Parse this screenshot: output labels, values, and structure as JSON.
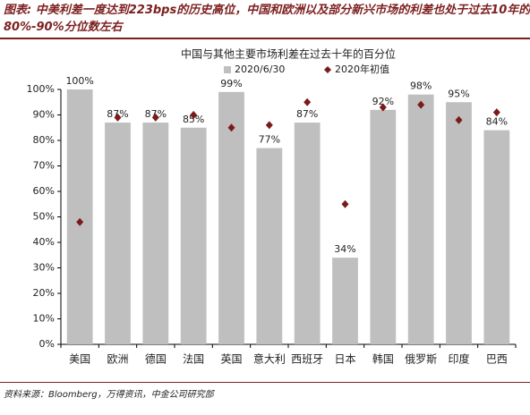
{
  "chart_data": {
    "type": "bar",
    "caption": "图表: 中美利差一度达到223bps的历史高位，中国和欧洲以及部分新兴市场的利差也处于过去10年的80%-90%分位数左右",
    "title": "中国与其他主要市场利差在过去十年的百分位",
    "source": "资料来源：Bloomberg，万得资讯，中金公司研究部",
    "categories": [
      "美国",
      "欧洲",
      "德国",
      "法国",
      "英国",
      "意大利",
      "西班牙",
      "日本",
      "韩国",
      "俄罗斯",
      "印度",
      "巴西"
    ],
    "series": [
      {
        "name": "2020/6/30",
        "color": "#bfbfbf",
        "marker": "bar",
        "values": [
          100,
          87,
          87,
          85,
          99,
          77,
          87,
          34,
          92,
          98,
          95,
          84
        ],
        "value_labels": [
          "100%",
          "87%",
          "87%",
          "85%",
          "99%",
          "77%",
          "87%",
          "34%",
          "92%",
          "98%",
          "95%",
          "84%"
        ]
      },
      {
        "name": "2020年初值",
        "color": "#7b1a1a",
        "marker": "diamond",
        "values": [
          48,
          89,
          89,
          90,
          85,
          86,
          95,
          55,
          93,
          94,
          88,
          91
        ]
      }
    ],
    "ylim": [
      0,
      100
    ],
    "yticks": [
      {
        "value": 0,
        "label": "0%"
      },
      {
        "value": 10,
        "label": "10%"
      },
      {
        "value": 20,
        "label": "20%"
      },
      {
        "value": 30,
        "label": "30%"
      },
      {
        "value": 40,
        "label": "40%"
      },
      {
        "value": 50,
        "label": "50%"
      },
      {
        "value": 60,
        "label": "60%"
      },
      {
        "value": 70,
        "label": "70%"
      },
      {
        "value": 80,
        "label": "80%"
      },
      {
        "value": 90,
        "label": "90%"
      },
      {
        "value": 100,
        "label": "100%"
      }
    ]
  }
}
